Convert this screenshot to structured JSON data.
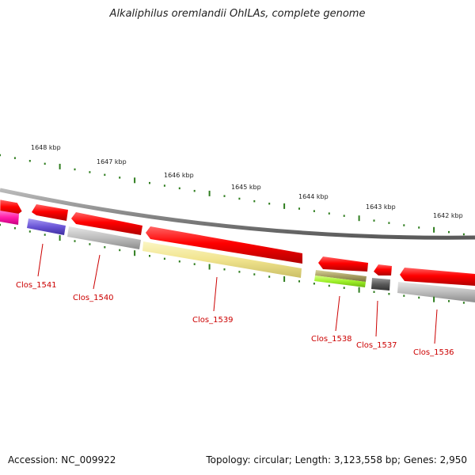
{
  "title": "Alkaliphilus oremlandii OhILAs, complete genome",
  "footer": {
    "accession": "Accession: NC_009922",
    "summary": "Topology: circular; Length: 3,123,558 bp; Genes: 2,950"
  },
  "kbp_labels": [
    "1648 kbp",
    "1647 kbp",
    "1646 kbp",
    "1645 kbp",
    "1644 kbp",
    "1643 kbp",
    "1642 kbp"
  ],
  "gene_labels": [
    "Clos_1541",
    "Clos_1540",
    "Clos_1539",
    "Clos_1538",
    "Clos_1537",
    "Clos_1536"
  ],
  "colors": {
    "forward_strand": "#ff0000",
    "tick": "#2e7d1e",
    "label": "#cc0000"
  }
}
